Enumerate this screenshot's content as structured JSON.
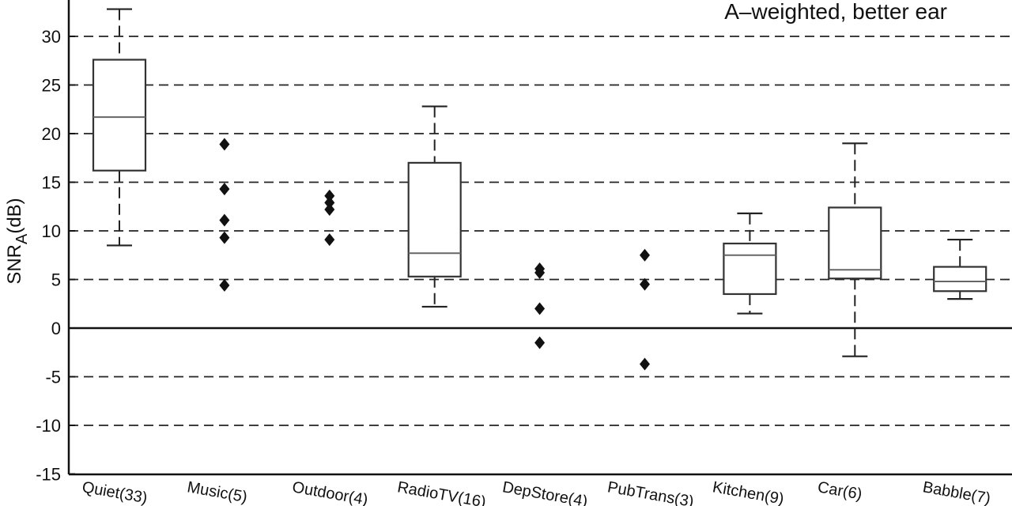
{
  "chart_data": {
    "type": "box",
    "title": "",
    "annotation": "A–weighted, better ear",
    "ylabel": {
      "main": "SNR",
      "sub": "A",
      "unit": "(dB)"
    },
    "ylim": [
      -15,
      33
    ],
    "yticks": [
      -15,
      -10,
      -5,
      0,
      5,
      10,
      15,
      20,
      25,
      30
    ],
    "grid": "dashed horizontal",
    "categories": [
      "Quiet(33)",
      "Music(5)",
      "Outdoor(4)",
      "RadioTV(16)",
      "DepStore(4)",
      "PubTrans(3)",
      "Kitchen(9)",
      "Car(6)",
      "Babble(7)"
    ],
    "boxes": [
      {
        "category": "Quiet(33)",
        "whisker_low": 8.5,
        "q1": 16.2,
        "median": 21.7,
        "q3": 27.6,
        "whisker_high": 32.8,
        "outliers": []
      },
      {
        "category": "Music(5)",
        "points": [
          18.9,
          14.3,
          11.1,
          9.3,
          4.4
        ]
      },
      {
        "category": "Outdoor(4)",
        "points": [
          13.6,
          12.9,
          12.2,
          9.1
        ]
      },
      {
        "category": "RadioTV(16)",
        "whisker_low": 2.2,
        "q1": 5.3,
        "median": 7.7,
        "q3": 17.0,
        "whisker_high": 22.8,
        "outliers": []
      },
      {
        "category": "DepStore(4)",
        "points": [
          6.1,
          5.7,
          2.0,
          -1.5
        ]
      },
      {
        "category": "PubTrans(3)",
        "points": [
          7.5,
          4.5,
          -3.7
        ]
      },
      {
        "category": "Kitchen(9)",
        "whisker_low": 1.5,
        "q1": 3.5,
        "median": 7.5,
        "q3": 8.7,
        "whisker_high": 11.8,
        "outliers": []
      },
      {
        "category": "Car(6)",
        "whisker_low": -2.9,
        "q1": 5.1,
        "median": 6.0,
        "q3": 12.4,
        "whisker_high": 19.0,
        "outliers": []
      },
      {
        "category": "Babble(7)",
        "whisker_low": 3.0,
        "q1": 3.8,
        "median": 4.8,
        "q3": 6.3,
        "whisker_high": 9.1,
        "outliers": []
      }
    ]
  }
}
